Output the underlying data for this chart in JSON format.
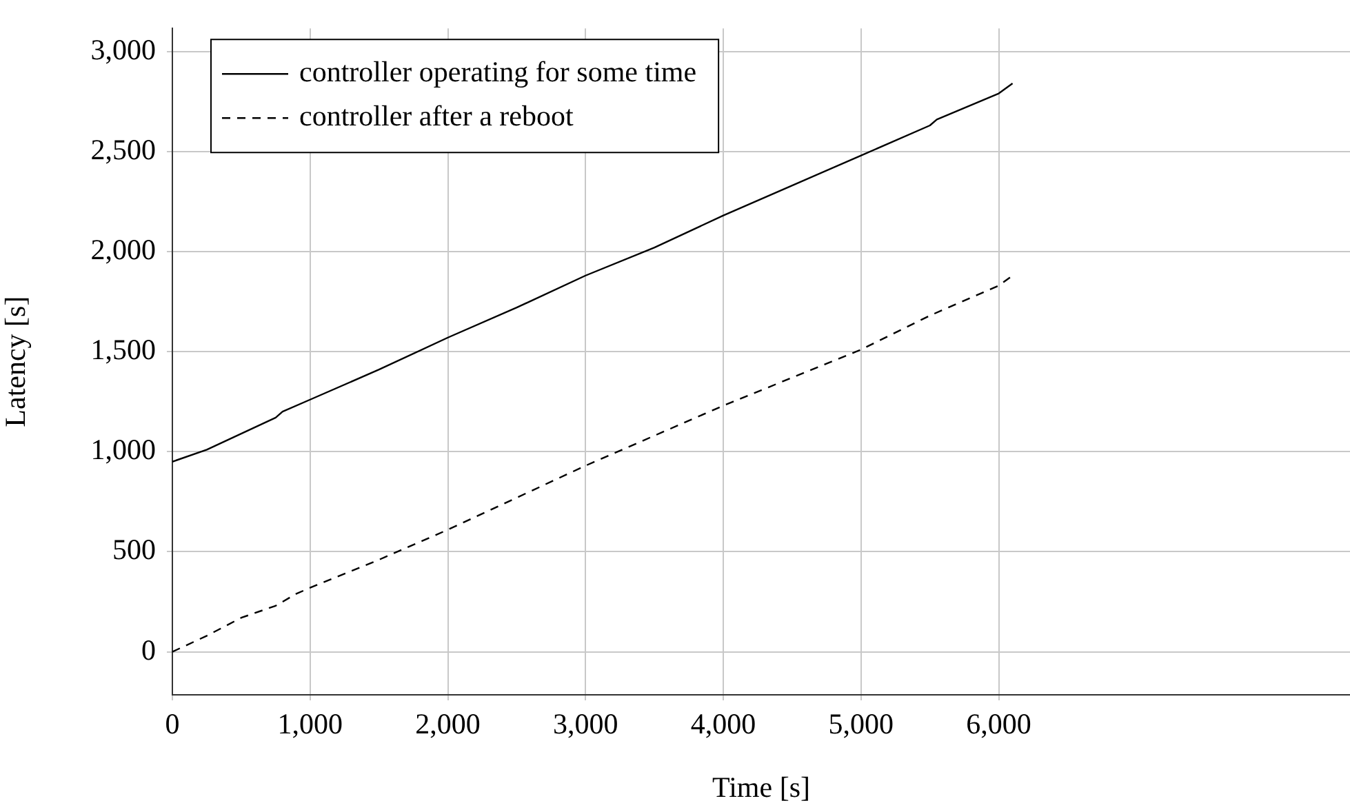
{
  "chart_data": {
    "type": "line",
    "xlabel": "Time [s]",
    "ylabel": "Latency [s]",
    "xlim": [
      0,
      8550
    ],
    "ylim": [
      -215,
      3115
    ],
    "xticks": [
      0,
      {
        "value": 1000,
        "label": "1,000"
      },
      {
        "value": 2000,
        "label": "2,000"
      },
      {
        "value": 3000,
        "label": "3,000"
      },
      {
        "value": 4000,
        "label": "4,000"
      },
      {
        "value": 5000,
        "label": "5,000"
      },
      {
        "value": 6000,
        "label": "6,000"
      }
    ],
    "yticks": [
      0,
      500,
      {
        "value": 1000,
        "label": "1,000"
      },
      {
        "value": 1500,
        "label": "1,500"
      },
      {
        "value": 2000,
        "label": "2,000"
      },
      {
        "value": 2500,
        "label": "2,500"
      },
      {
        "value": 3000,
        "label": "3,000"
      }
    ],
    "grid": true,
    "legend": "top left",
    "marker": "none",
    "series": [
      {
        "name": "controller operating for some time",
        "color": "#000000",
        "line_style": "solid",
        "x": [
          0,
          250,
          500,
          750,
          800,
          1000,
          1500,
          2000,
          2500,
          3000,
          3500,
          4000,
          4500,
          5000,
          5500,
          5550,
          6000,
          6100
        ],
        "values": [
          950,
          1010,
          1090,
          1170,
          1200,
          1260,
          1410,
          1570,
          1720,
          1880,
          2020,
          2180,
          2330,
          2480,
          2630,
          2660,
          2790,
          2840
        ]
      },
      {
        "name": "controller after a reboot",
        "color": "#000000",
        "line_style": "dashed",
        "x": [
          0,
          250,
          500,
          750,
          900,
          1000,
          1500,
          2000,
          2500,
          3000,
          3500,
          4000,
          4500,
          5000,
          5500,
          6000,
          6100
        ],
        "values": [
          0,
          80,
          170,
          230,
          290,
          320,
          460,
          610,
          770,
          930,
          1080,
          1230,
          1370,
          1510,
          1680,
          1830,
          1880
        ]
      }
    ]
  }
}
